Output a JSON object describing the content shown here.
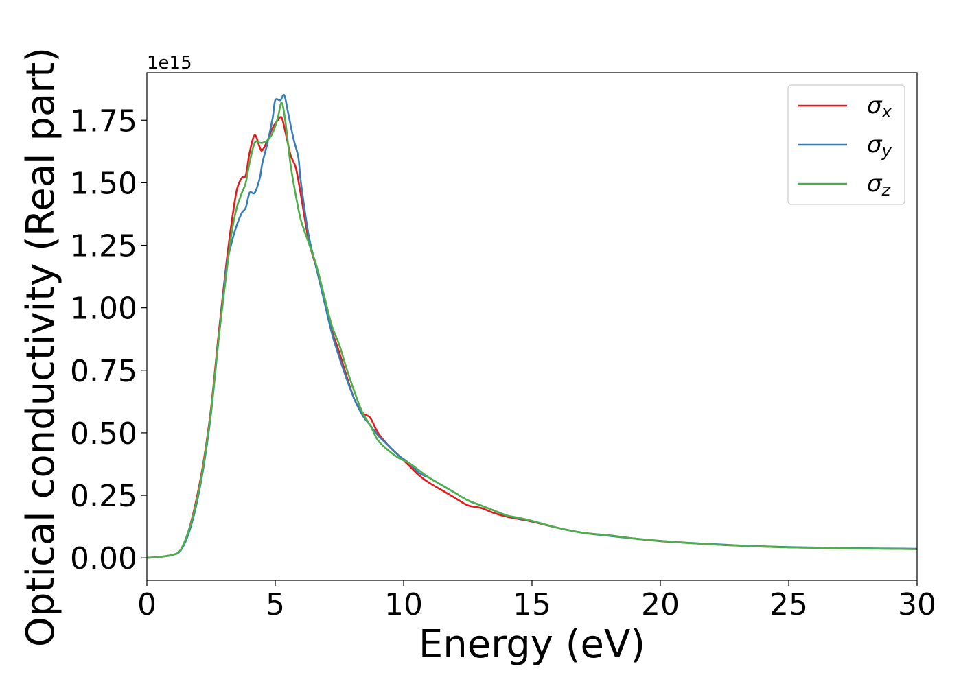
{
  "chart_data": {
    "type": "line",
    "title": "",
    "xlabel": "Energy (eV)",
    "ylabel": "Optical conductivity (Real part)",
    "y_offset_label": "1e15",
    "xlim": [
      0,
      30
    ],
    "ylim": [
      -0.09,
      1.94
    ],
    "xticks": [
      0,
      5,
      10,
      15,
      20,
      25,
      30
    ],
    "xtick_labels": [
      "0",
      "5",
      "10",
      "15",
      "20",
      "25",
      "30"
    ],
    "yticks": [
      0.0,
      0.25,
      0.5,
      0.75,
      1.0,
      1.25,
      1.5,
      1.75
    ],
    "ytick_labels": [
      "0.00",
      "0.25",
      "0.50",
      "0.75",
      "1.00",
      "1.25",
      "1.50",
      "1.75"
    ],
    "grid": false,
    "legend_position": "top-right",
    "series": [
      {
        "name": "σx",
        "color": "#e41a1c",
        "x": [
          0,
          0.5,
          1,
          1.3,
          1.6,
          1.9,
          2.2,
          2.5,
          2.8,
          3.1,
          3.3,
          3.5,
          3.7,
          3.85,
          4.0,
          4.2,
          4.4,
          4.5,
          4.7,
          4.9,
          5.1,
          5.25,
          5.4,
          5.6,
          5.8,
          6.0,
          6.3,
          6.6,
          6.9,
          7.2,
          7.5,
          7.8,
          8.1,
          8.4,
          8.7,
          9.0,
          9.4,
          9.8,
          10.2,
          10.6,
          11.0,
          11.5,
          12.0,
          12.5,
          13.0,
          13.5,
          14.0,
          14.5,
          15,
          16,
          17,
          18,
          19,
          20,
          21,
          22,
          23,
          24,
          25,
          26,
          27,
          28,
          29,
          30
        ],
        "values": [
          0.0,
          0.004,
          0.012,
          0.03,
          0.1,
          0.22,
          0.38,
          0.6,
          0.9,
          1.18,
          1.34,
          1.47,
          1.52,
          1.53,
          1.62,
          1.69,
          1.64,
          1.63,
          1.67,
          1.72,
          1.75,
          1.76,
          1.7,
          1.61,
          1.56,
          1.45,
          1.27,
          1.16,
          1.03,
          0.91,
          0.82,
          0.72,
          0.63,
          0.58,
          0.56,
          0.5,
          0.45,
          0.41,
          0.37,
          0.33,
          0.3,
          0.27,
          0.24,
          0.21,
          0.2,
          0.18,
          0.165,
          0.155,
          0.145,
          0.12,
          0.1,
          0.09,
          0.077,
          0.067,
          0.06,
          0.054,
          0.049,
          0.045,
          0.042,
          0.04,
          0.038,
          0.037,
          0.036,
          0.035
        ]
      },
      {
        "name": "σy",
        "color": "#377eb8",
        "x": [
          0,
          0.5,
          1,
          1.3,
          1.6,
          1.9,
          2.2,
          2.5,
          2.8,
          3.1,
          3.3,
          3.5,
          3.7,
          3.85,
          4.0,
          4.2,
          4.4,
          4.5,
          4.7,
          4.9,
          5.0,
          5.2,
          5.35,
          5.5,
          5.7,
          5.9,
          6.0,
          6.3,
          6.6,
          6.9,
          7.2,
          7.5,
          7.8,
          8.1,
          8.4,
          8.7,
          9.0,
          9.4,
          9.8,
          10.2,
          10.6,
          11.0,
          11.5,
          12.0,
          12.5,
          13.0,
          13.5,
          14.0,
          14.5,
          15,
          16,
          17,
          18,
          19,
          20,
          21,
          22,
          23,
          24,
          25,
          26,
          27,
          28,
          29,
          30
        ],
        "values": [
          0.0,
          0.004,
          0.012,
          0.028,
          0.09,
          0.2,
          0.36,
          0.58,
          0.88,
          1.16,
          1.26,
          1.33,
          1.38,
          1.4,
          1.46,
          1.46,
          1.52,
          1.58,
          1.66,
          1.76,
          1.83,
          1.83,
          1.85,
          1.78,
          1.68,
          1.6,
          1.5,
          1.29,
          1.16,
          1.03,
          0.9,
          0.8,
          0.71,
          0.63,
          0.57,
          0.53,
          0.49,
          0.45,
          0.41,
          0.38,
          0.34,
          0.32,
          0.29,
          0.26,
          0.23,
          0.21,
          0.19,
          0.17,
          0.158,
          0.147,
          0.12,
          0.1,
          0.088,
          0.077,
          0.068,
          0.061,
          0.055,
          0.05,
          0.046,
          0.043,
          0.041,
          0.039,
          0.038,
          0.037,
          0.036
        ]
      },
      {
        "name": "σz",
        "color": "#4daf4a",
        "x": [
          0,
          0.5,
          1,
          1.3,
          1.6,
          1.9,
          2.2,
          2.5,
          2.8,
          3.1,
          3.3,
          3.5,
          3.7,
          3.85,
          4.0,
          4.2,
          4.4,
          4.5,
          4.7,
          4.9,
          5.1,
          5.25,
          5.4,
          5.6,
          5.8,
          6.0,
          6.3,
          6.6,
          6.9,
          7.2,
          7.5,
          7.8,
          8.1,
          8.4,
          8.7,
          9.0,
          9.4,
          9.8,
          10.2,
          10.6,
          11.0,
          11.5,
          12.0,
          12.5,
          13.0,
          13.5,
          14.0,
          14.5,
          15,
          16,
          17,
          18,
          19,
          20,
          21,
          22,
          23,
          24,
          25,
          26,
          27,
          28,
          29,
          30
        ],
        "values": [
          0.0,
          0.004,
          0.012,
          0.03,
          0.1,
          0.21,
          0.37,
          0.59,
          0.88,
          1.14,
          1.3,
          1.4,
          1.46,
          1.5,
          1.58,
          1.66,
          1.66,
          1.66,
          1.67,
          1.7,
          1.76,
          1.82,
          1.74,
          1.57,
          1.45,
          1.35,
          1.26,
          1.17,
          1.05,
          0.93,
          0.85,
          0.75,
          0.66,
          0.58,
          0.53,
          0.47,
          0.43,
          0.4,
          0.38,
          0.35,
          0.32,
          0.29,
          0.26,
          0.23,
          0.21,
          0.19,
          0.17,
          0.16,
          0.148,
          0.12,
          0.1,
          0.09,
          0.077,
          0.068,
          0.06,
          0.054,
          0.049,
          0.045,
          0.042,
          0.04,
          0.038,
          0.037,
          0.036,
          0.035
        ]
      }
    ]
  }
}
